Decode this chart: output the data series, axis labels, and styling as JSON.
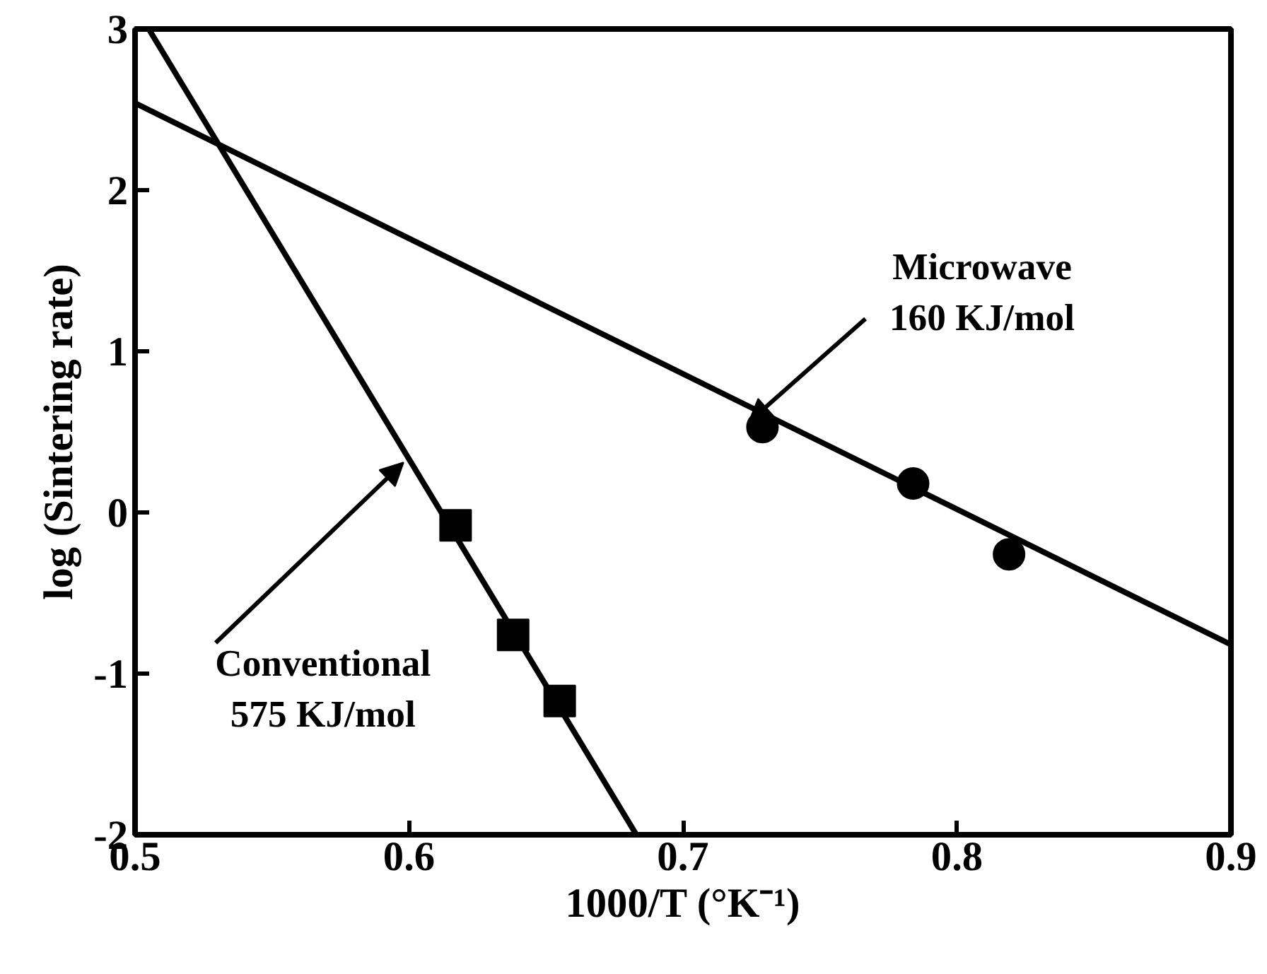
{
  "chart_data": {
    "type": "scatter",
    "xlabel": "1000/T (°K⁻¹)",
    "ylabel": "log (Sintering rate)",
    "xlim": [
      0.5,
      0.9
    ],
    "ylim": [
      -2,
      3
    ],
    "xticks": [
      0.5,
      0.6,
      0.7,
      0.8,
      0.9
    ],
    "yticks": [
      -2,
      -1,
      0,
      1,
      2,
      3
    ],
    "grid": false,
    "series": [
      {
        "marker": "square",
        "color": "#000000",
        "x": [
          0.617,
          0.638,
          0.655
        ],
        "values": [
          -0.08,
          -0.76,
          -1.17
        ]
      },
      {
        "marker": "circle",
        "color": "#000000",
        "x": [
          0.729,
          0.784,
          0.819
        ],
        "values": [
          0.53,
          0.18,
          -0.26
        ]
      },
      {
        "type": "line",
        "marker": "none",
        "color": "#000000",
        "x": [
          0.505,
          0.683
        ],
        "values": [
          3.0,
          -2.0
        ]
      },
      {
        "type": "line",
        "marker": "none",
        "color": "#000000",
        "x": [
          0.5,
          0.9
        ],
        "values": [
          2.54,
          -0.82
        ]
      }
    ],
    "annotations": [
      {
        "text": "Microwave\n160 KJ/mol",
        "x": 0.724,
        "y": 0.56
      },
      {
        "text": "Conventional\n575 KJ/mol",
        "x": 0.598,
        "y": 0.31
      }
    ]
  }
}
